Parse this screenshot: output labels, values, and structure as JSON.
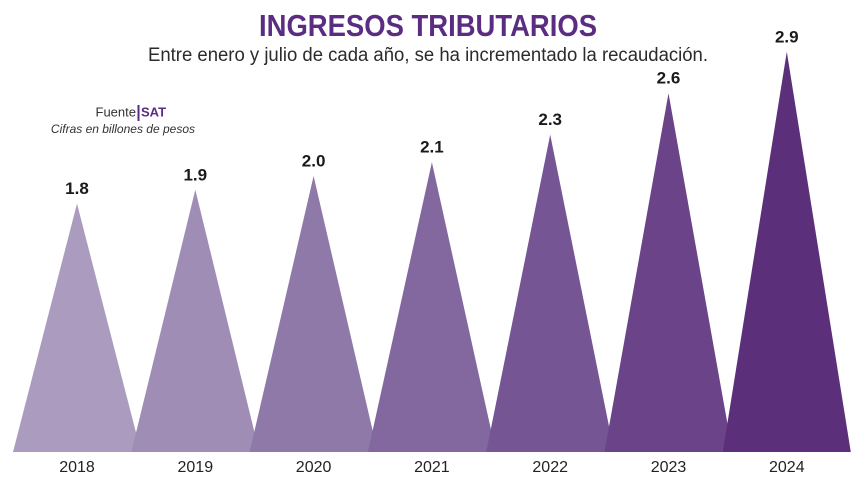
{
  "chart_data": {
    "type": "bar",
    "title": "INGRESOS TRIBUTARIOS",
    "subtitle": "Entre enero y julio de cada año, se ha incrementado la recaudación.",
    "source_label": "Fuente",
    "source": "SAT",
    "note": "Cifras en billones de pesos",
    "categories": [
      "2018",
      "2019",
      "2020",
      "2021",
      "2022",
      "2023",
      "2024"
    ],
    "values": [
      1.8,
      1.9,
      2.0,
      2.1,
      2.3,
      2.6,
      2.9
    ],
    "value_labels": [
      "1.8",
      "1.9",
      "2.0",
      "2.1",
      "2.3",
      "2.6",
      "2.9"
    ],
    "colors": [
      "#ab9cbf",
      "#9f8db6",
      "#8f79a9",
      "#83689f",
      "#765595",
      "#6a4388",
      "#5c2f7b"
    ]
  }
}
